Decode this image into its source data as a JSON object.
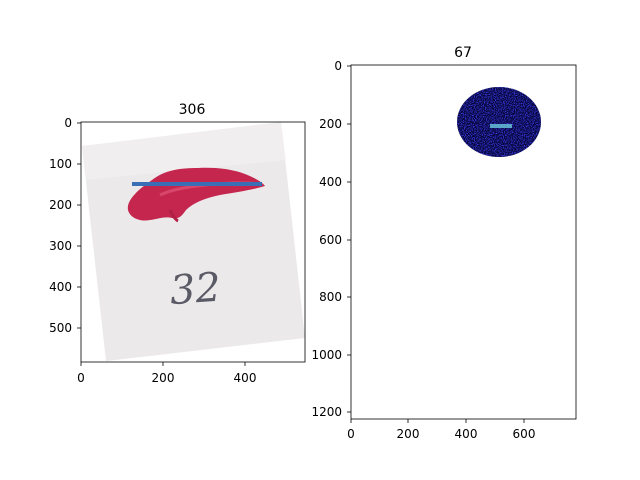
{
  "panels": [
    {
      "title": "306",
      "xticks": [
        "0",
        "200",
        "400"
      ],
      "yticks": [
        "0",
        "100",
        "200",
        "300",
        "400",
        "500"
      ],
      "image_content": "photo of red tissue sample on paper with handwritten number",
      "handwritten_text": "32",
      "line_color": "#3a6eb5"
    },
    {
      "title": "67",
      "xticks": [
        "0",
        "200",
        "400",
        "600"
      ],
      "yticks": [
        "0",
        "200",
        "400",
        "600",
        "800",
        "1000",
        "1200"
      ],
      "image_content": "dark blue noisy ellipse mask on white background",
      "line_color": "#5aa6c8"
    }
  ]
}
